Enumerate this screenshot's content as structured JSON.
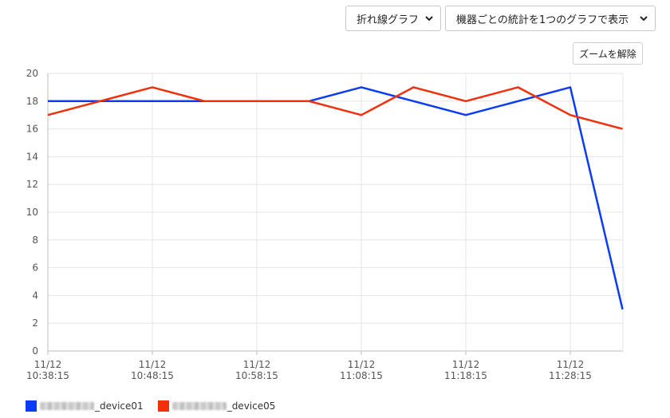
{
  "controls": {
    "chart_type": "折れ線グラフ",
    "display_mode": "機器ごとの統計を1つのグラフで表示",
    "reset_zoom": "ズームを解除"
  },
  "chart_data": {
    "type": "line",
    "ylim": [
      0,
      20
    ],
    "y_ticks": [
      "0",
      "2",
      "4",
      "6",
      "8",
      "10",
      "12",
      "14",
      "16",
      "18",
      "20"
    ],
    "x_ticks": [
      {
        "date": "11/12",
        "time": "10:38:15"
      },
      {
        "date": "11/12",
        "time": "10:48:15"
      },
      {
        "date": "11/12",
        "time": "10:58:15"
      },
      {
        "date": "11/12",
        "time": "11:08:15"
      },
      {
        "date": "11/12",
        "time": "11:18:15"
      },
      {
        "date": "11/12",
        "time": "11:28:15"
      }
    ],
    "x": [
      "10:38:15",
      "10:43:15",
      "10:48:15",
      "10:53:15",
      "10:58:15",
      "11:03:15",
      "11:08:15",
      "11:13:15",
      "11:18:15",
      "11:23:15",
      "11:28:15",
      "11:33:15"
    ],
    "grid": true,
    "legend_position": "bottom-left",
    "series": [
      {
        "name": "_device01",
        "color": "#0a3cf5",
        "values": [
          18,
          18,
          18,
          18,
          18,
          18,
          19,
          18,
          17,
          18,
          19,
          3
        ]
      },
      {
        "name": "_device05",
        "color": "#f0300a",
        "values": [
          17,
          18,
          19,
          18,
          18,
          18,
          17,
          19,
          18,
          19,
          17,
          16
        ]
      }
    ]
  }
}
